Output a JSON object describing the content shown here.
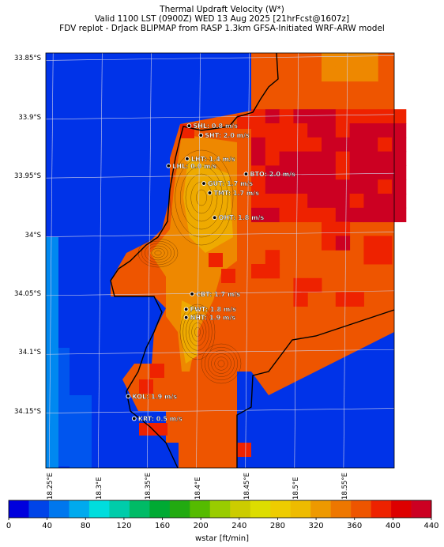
{
  "titles": {
    "line1": "Thermal Updraft Velocity (W*)",
    "line2": "Valid 1100 LST (0900Z) WED 13 Aug 2025 [21hrFcst@1607z]",
    "line3": "FDV replot - DrJack BLIPMAP from RASP 1.3km GFSA-Initiated WRF-ARW model"
  },
  "map": {
    "lat_ticks": [
      "33.85°S",
      "33.9°S",
      "33.95°S",
      "34°S",
      "34.05°S",
      "34.1°S",
      "34.15°S"
    ],
    "lon_ticks": [
      "18.25°E",
      "18.3°E",
      "18.35°E",
      "18.4°E",
      "18.45°E",
      "18.5°E",
      "18.55°E"
    ],
    "lat_range": [
      -34.198,
      -33.845
    ],
    "lon_range": [
      18.245,
      18.6
    ]
  },
  "stations": [
    {
      "code": "SHL",
      "label": "SHL: 0.8 m/s",
      "lon": 18.391,
      "lat": -33.907
    },
    {
      "code": "SHT",
      "label": "SHT: 2.0 m/s",
      "lon": 18.403,
      "lat": -33.915
    },
    {
      "code": "LHT",
      "label": "LHT: 1.4 m/s",
      "lon": 18.389,
      "lat": -33.935
    },
    {
      "code": "LHL",
      "label": "LHL: 0.0 m/s",
      "lon": 18.37,
      "lat": -33.941
    },
    {
      "code": "BTO",
      "label": "BTO: 2.0 m/s",
      "lon": 18.449,
      "lat": -33.948
    },
    {
      "code": "GUT",
      "label": "GUT: 1.7 m/s",
      "lon": 18.406,
      "lat": -33.956
    },
    {
      "code": "TMT",
      "label": "TMT: 1.7 m/s",
      "lon": 18.412,
      "lat": -33.964
    },
    {
      "code": "OHT",
      "label": "OHT: 1.8 m/s",
      "lon": 18.417,
      "lat": -33.985
    },
    {
      "code": "CBT",
      "label": "CBT: 1.7 m/s",
      "lon": 18.394,
      "lat": -34.05
    },
    {
      "code": "FWT",
      "label": "FWT: 1.8 m/s",
      "lon": 18.388,
      "lat": -34.063
    },
    {
      "code": "NHT",
      "label": "NHT: 1.9 m/s",
      "lon": 18.388,
      "lat": -34.07
    },
    {
      "code": "KOL",
      "label": "KOL: 1.9 m/s",
      "lon": 18.329,
      "lat": -34.137
    },
    {
      "code": "KRT",
      "label": "KRT: 0.5 m/s",
      "lon": 18.335,
      "lat": -34.156
    }
  ],
  "colorbar": {
    "label": "wstar [ft/min]",
    "ticks": [
      "0",
      "40",
      "80",
      "120",
      "160",
      "200",
      "240",
      "280",
      "320",
      "360",
      "400",
      "440"
    ],
    "colors": [
      "#0000dd",
      "#0044e8",
      "#0077ee",
      "#00aaee",
      "#00dddd",
      "#00ccaa",
      "#00bb66",
      "#00aa33",
      "#22aa11",
      "#55bb00",
      "#99cc00",
      "#cccc00",
      "#dddd00",
      "#eecc00",
      "#eebb00",
      "#ee9900",
      "#ee7700",
      "#ee5500",
      "#ee2200",
      "#dd0000",
      "#cc0022"
    ]
  },
  "field_colors": {
    "ocean": "#0033e8",
    "shelf": "#0055ee",
    "coast_blue": "#0088f0",
    "mainland_orange": "#ee5500",
    "mainland_red": "#ee2200",
    "mainland_dark": "#cc0022",
    "ridge_orange": "#ee8800",
    "ridge_yellow": "#eeaa00"
  }
}
